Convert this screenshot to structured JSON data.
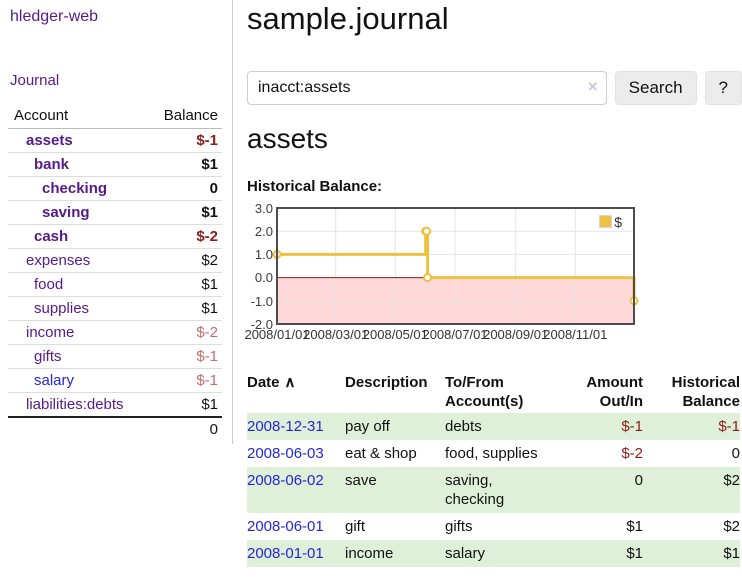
{
  "colors": {
    "purple_link": "#551a8b",
    "blue_link": "#2525d8",
    "negative": "#8e1b1b",
    "negative_dim": "#c56c6c",
    "row_green": "#dff0d8",
    "chart_line": "#EDC240",
    "negative_region": "#ffd9d9",
    "zero_line": "#8b1a1a",
    "frame": "#4d4d4d",
    "grid": "#e4e4e4"
  },
  "app": {
    "title": "hledger-web"
  },
  "sidebar": {
    "journal_link": "Journal",
    "headers": {
      "account": "Account",
      "balance": "Balance"
    },
    "accounts": [
      {
        "name": "assets",
        "balance": "$-1",
        "depth": 1,
        "bold": true,
        "balance_tone": "negative",
        "link_tone": "purple"
      },
      {
        "name": "bank",
        "balance": "$1",
        "depth": 2,
        "bold": true,
        "balance_tone": "normal",
        "link_tone": "purple"
      },
      {
        "name": "checking",
        "balance": "0",
        "depth": 3,
        "bold": true,
        "balance_tone": "normal",
        "link_tone": "purple"
      },
      {
        "name": "saving",
        "balance": "$1",
        "depth": 3,
        "bold": true,
        "balance_tone": "normal",
        "link_tone": "purple"
      },
      {
        "name": "cash",
        "balance": "$-2",
        "depth": 2,
        "bold": true,
        "balance_tone": "negative",
        "link_tone": "purple"
      },
      {
        "name": "expenses",
        "balance": "$2",
        "depth": 1,
        "bold": false,
        "balance_tone": "normal",
        "link_tone": "purple"
      },
      {
        "name": "food",
        "balance": "$1",
        "depth": 2,
        "bold": false,
        "balance_tone": "normal",
        "link_tone": "purple"
      },
      {
        "name": "supplies",
        "balance": "$1",
        "depth": 2,
        "bold": false,
        "balance_tone": "normal",
        "link_tone": "purple"
      },
      {
        "name": "income",
        "balance": "$-2",
        "depth": 1,
        "bold": false,
        "balance_tone": "negative_dim",
        "link_tone": "purple"
      },
      {
        "name": "gifts",
        "balance": "$-1",
        "depth": 2,
        "bold": false,
        "balance_tone": "negative_dim",
        "link_tone": "purple"
      },
      {
        "name": "salary",
        "balance": "$-1",
        "depth": 2,
        "bold": false,
        "balance_tone": "negative_dim",
        "link_tone": "blue"
      },
      {
        "name": "liabilities:debts",
        "balance": "$1",
        "depth": 1,
        "bold": false,
        "balance_tone": "normal",
        "link_tone": "purple"
      }
    ],
    "total": "0"
  },
  "main": {
    "title": "sample.journal",
    "search": {
      "value": "inacct:assets",
      "clear_icon": "×",
      "button_label": "Search",
      "help_label": "?"
    },
    "account_heading": "assets",
    "chart_label": "Historical Balance:"
  },
  "chart_data": {
    "type": "line",
    "step": true,
    "title": "Historical Balance",
    "xlim": [
      "2008-01-01",
      "2008-12-31"
    ],
    "ylim": [
      -2,
      3
    ],
    "y_ticks": [
      "3.0",
      "2.0",
      "1.0",
      "0.0",
      "-1.0",
      "-2.0"
    ],
    "x_ticks": [
      "2008/01/01",
      "2008/03/01",
      "2008/05/01",
      "2008/07/01",
      "2008/09/01",
      "2008/11/01"
    ],
    "grid": true,
    "legend_position": "top-right",
    "negative_region_shaded": true,
    "series": [
      {
        "name": "$",
        "color": "#EDC240",
        "points": [
          [
            "2008-01-01",
            1
          ],
          [
            "2008-06-01",
            2
          ],
          [
            "2008-06-02",
            2
          ],
          [
            "2008-06-03",
            0
          ],
          [
            "2008-12-31",
            -1
          ]
        ]
      }
    ]
  },
  "register": {
    "sort_arrow": "∧",
    "headers": [
      {
        "l1": "Date",
        "l2": ""
      },
      {
        "l1": "Description",
        "l2": ""
      },
      {
        "l1": "To/From",
        "l2": "Account(s)"
      },
      {
        "l1": "Amount",
        "l2": "Out/In"
      },
      {
        "l1": "Historical",
        "l2": "Balance"
      }
    ],
    "rows": [
      {
        "date": "2008-12-31",
        "description": "pay off",
        "accounts": "debts",
        "amount": "$-1",
        "amount_negative": true,
        "balance": "$-1",
        "balance_negative": true
      },
      {
        "date": "2008-06-03",
        "description": "eat & shop",
        "accounts": "food, supplies",
        "amount": "$-2",
        "amount_negative": true,
        "balance": "0",
        "balance_negative": false
      },
      {
        "date": "2008-06-02",
        "description": "save",
        "accounts": "saving, checking",
        "amount": "0",
        "amount_negative": false,
        "balance": "$2",
        "balance_negative": false
      },
      {
        "date": "2008-06-01",
        "description": "gift",
        "accounts": "gifts",
        "amount": "$1",
        "amount_negative": false,
        "balance": "$2",
        "balance_negative": false
      },
      {
        "date": "2008-01-01",
        "description": "income",
        "accounts": "salary",
        "amount": "$1",
        "amount_negative": false,
        "balance": "$1",
        "balance_negative": false
      }
    ]
  }
}
